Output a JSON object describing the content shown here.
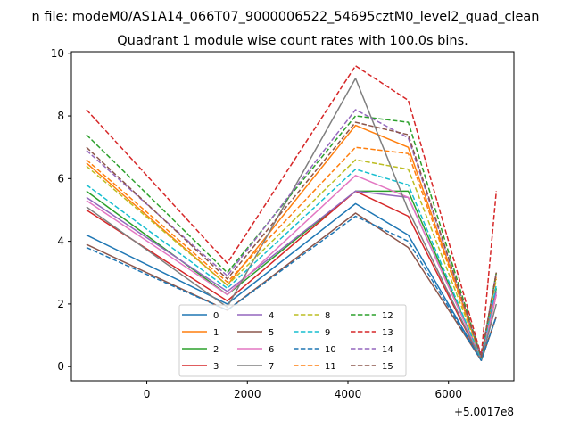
{
  "chart_data": {
    "type": "line",
    "suptitle": "n file: modeM0/AS1A14_066T07_9000006522_54695cztM0_level2_quad_clean",
    "title": "Quadrant 1 module wise count rates with 100.0s bins.",
    "xlabel": "",
    "ylabel": "",
    "x_offset_label": "+5.0017e8",
    "xlim": [
      -1500,
      7300
    ],
    "ylim": [
      -0.45,
      10.05
    ],
    "xticks": [
      0,
      2000,
      4000,
      6000
    ],
    "xtick_labels": [
      "0",
      "2000",
      "4000",
      "6000"
    ],
    "yticks": [
      0,
      2,
      4,
      6,
      8,
      10
    ],
    "ytick_labels": [
      "0",
      "2",
      "4",
      "6",
      "8",
      "10"
    ],
    "grid": false,
    "legend_position": "lower-center",
    "legend_columns": 4,
    "x": [
      -1200,
      1600,
      4150,
      5200,
      6650,
      6950
    ],
    "series": [
      {
        "name": "0",
        "color": "#1f77b4",
        "dash": "solid",
        "values": [
          4.2,
          2.0,
          5.2,
          4.2,
          0.2,
          1.6
        ]
      },
      {
        "name": "1",
        "color": "#ff7f0e",
        "dash": "solid",
        "values": [
          6.5,
          2.6,
          7.7,
          7.0,
          0.3,
          3.0
        ]
      },
      {
        "name": "2",
        "color": "#2ca02c",
        "dash": "solid",
        "values": [
          5.6,
          2.3,
          5.6,
          5.6,
          0.25,
          2.5
        ]
      },
      {
        "name": "3",
        "color": "#d62728",
        "dash": "solid",
        "values": [
          5.0,
          2.1,
          5.6,
          4.8,
          0.2,
          2.3
        ]
      },
      {
        "name": "4",
        "color": "#9467bd",
        "dash": "solid",
        "values": [
          5.4,
          2.4,
          5.6,
          5.4,
          0.25,
          2.4
        ]
      },
      {
        "name": "5",
        "color": "#8c564b",
        "dash": "solid",
        "values": [
          3.9,
          1.8,
          4.9,
          3.8,
          0.2,
          1.6
        ]
      },
      {
        "name": "6",
        "color": "#e377c2",
        "dash": "solid",
        "values": [
          5.3,
          2.3,
          6.1,
          5.4,
          0.25,
          2.3
        ]
      },
      {
        "name": "7",
        "color": "#7f7f7f",
        "dash": "solid",
        "values": [
          5.1,
          1.9,
          9.2,
          5.0,
          0.2,
          2.0
        ]
      },
      {
        "name": "8",
        "color": "#bcbd22",
        "dash": "dashed",
        "values": [
          6.4,
          2.6,
          6.6,
          6.3,
          0.3,
          2.8
        ]
      },
      {
        "name": "9",
        "color": "#17becf",
        "dash": "dashed",
        "values": [
          5.8,
          2.5,
          6.3,
          5.8,
          0.25,
          2.6
        ]
      },
      {
        "name": "10",
        "color": "#1f77b4",
        "dash": "dashed",
        "values": [
          3.8,
          1.8,
          4.8,
          4.0,
          0.2,
          1.6
        ]
      },
      {
        "name": "11",
        "color": "#ff7f0e",
        "dash": "dashed",
        "values": [
          6.6,
          2.7,
          7.0,
          6.8,
          0.3,
          2.9
        ]
      },
      {
        "name": "12",
        "color": "#2ca02c",
        "dash": "dashed",
        "values": [
          7.4,
          3.0,
          8.0,
          7.8,
          0.3,
          3.0
        ]
      },
      {
        "name": "13",
        "color": "#d62728",
        "dash": "dashed",
        "values": [
          8.2,
          3.3,
          9.6,
          8.5,
          0.35,
          5.6
        ]
      },
      {
        "name": "14",
        "color": "#9467bd",
        "dash": "dashed",
        "values": [
          6.9,
          2.9,
          8.2,
          7.3,
          0.3,
          3.0
        ]
      },
      {
        "name": "15",
        "color": "#8c564b",
        "dash": "dashed",
        "values": [
          7.0,
          2.8,
          7.8,
          7.4,
          0.3,
          3.0
        ]
      }
    ]
  }
}
